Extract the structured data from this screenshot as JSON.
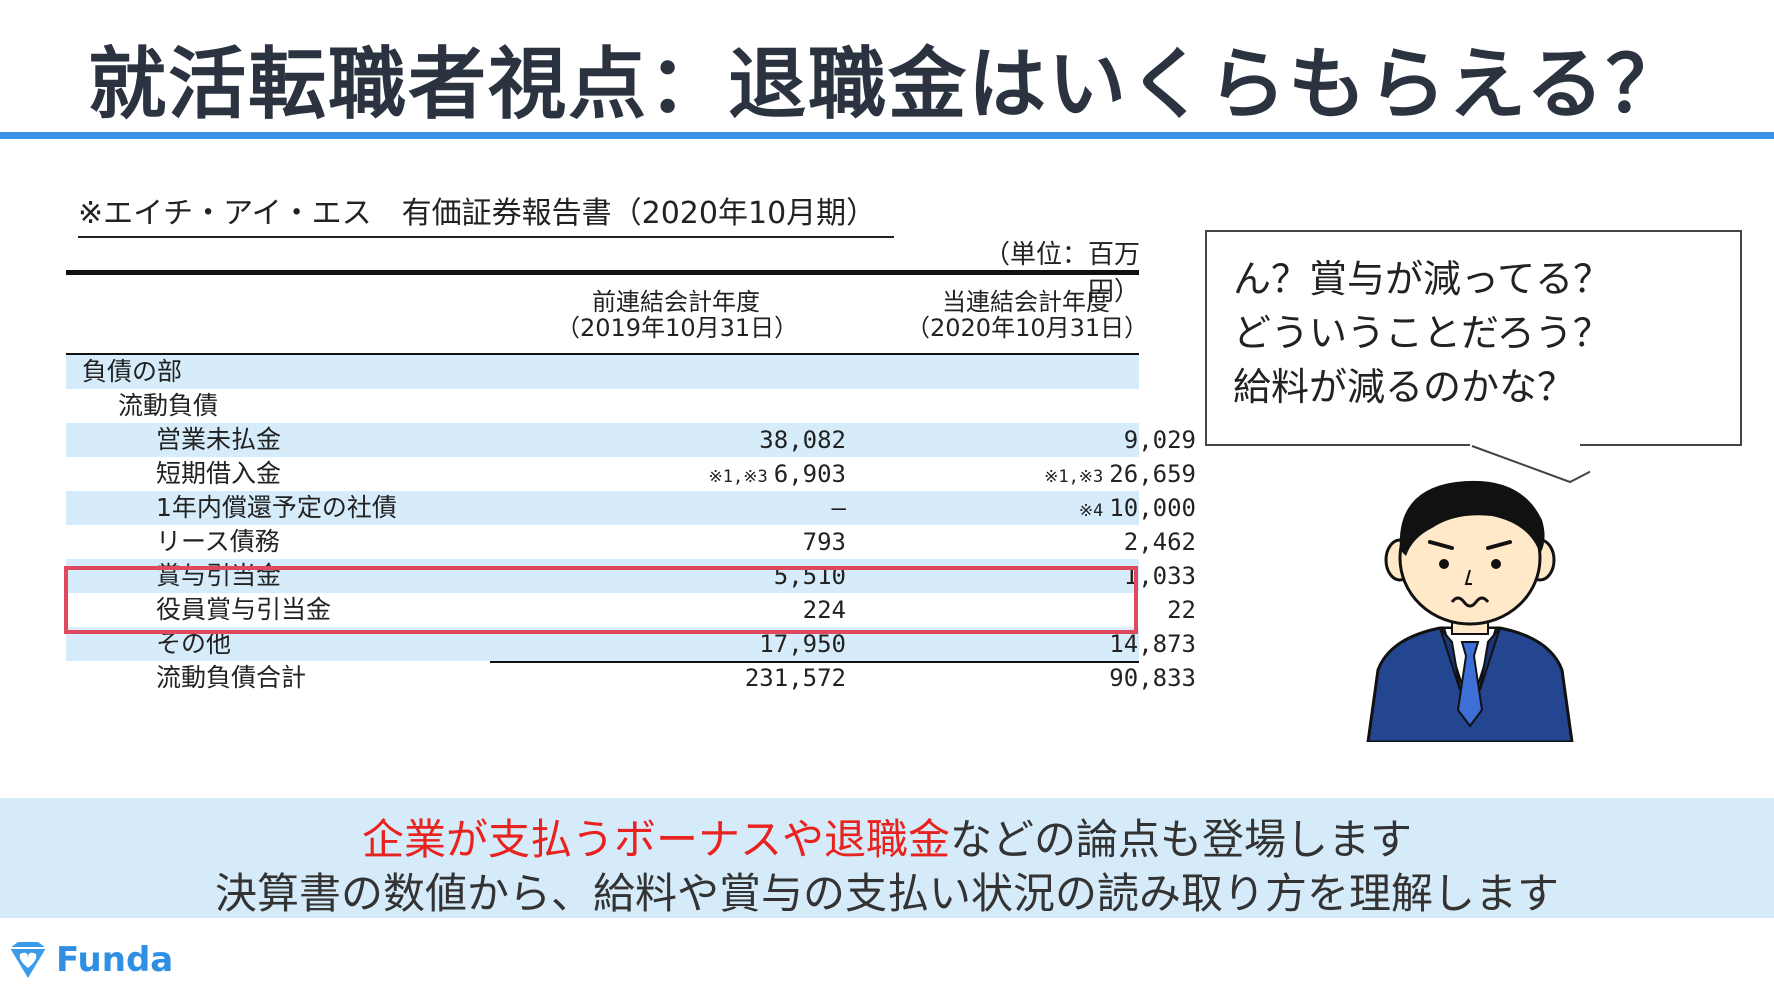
{
  "title": "就活転職者視点：退職金はいくらもらえる？",
  "source": "※エイチ・アイ・エス　有価証券報告書（2020年10月期）",
  "unit": "（単位：百万円）",
  "table": {
    "col1_line1": "前連結会計年度",
    "col1_line2": "（2019年10月31日）",
    "col2_line1": "当連結会計年度",
    "col2_line2": "（2020年10月31日）",
    "rows": [
      {
        "label": "負債の部",
        "v1": "",
        "v2": "",
        "n1": "",
        "n2": ""
      },
      {
        "label": "流動負債",
        "v1": "",
        "v2": "",
        "n1": "",
        "n2": ""
      },
      {
        "label": "営業未払金",
        "v1": "38,082",
        "v2": "9,029",
        "n1": "",
        "n2": ""
      },
      {
        "label": "短期借入金",
        "v1": "6,903",
        "v2": "26,659",
        "n1": "※1,※3",
        "n2": "※1,※3"
      },
      {
        "label": "1年内償還予定の社債",
        "v1": "―",
        "v2": "10,000",
        "n1": "",
        "n2": "※4"
      },
      {
        "label": "リース債務",
        "v1": "793",
        "v2": "2,462",
        "n1": "",
        "n2": ""
      },
      {
        "label": "賞与引当金",
        "v1": "5,510",
        "v2": "1,033",
        "n1": "",
        "n2": ""
      },
      {
        "label": "役員賞与引当金",
        "v1": "224",
        "v2": "22",
        "n1": "",
        "n2": ""
      },
      {
        "label": "その他",
        "v1": "17,950",
        "v2": "14,873",
        "n1": "",
        "n2": ""
      },
      {
        "label": "流動負債合計",
        "v1": "231,572",
        "v2": "90,833",
        "n1": "",
        "n2": ""
      }
    ]
  },
  "bubble": {
    "line1": "ん？賞与が減ってる？",
    "line2": "どういうことだろう？",
    "line3": "給料が減るのかな？"
  },
  "band": {
    "line1_red": "企業が支払うボーナスや退職金",
    "line1_rest": "などの論点も登場します",
    "line2": "決算書の数値から、給料や賞与の支払い状況の読み取り方を理解します"
  },
  "logo": {
    "text": "Funda",
    "icon": "diamond-heart-icon"
  },
  "colors": {
    "accent": "#3a93e6",
    "highlight": "#e0485d",
    "row_blue": "#d7ecfb",
    "band": "#d6ebfa",
    "red_text": "#e8231f"
  }
}
